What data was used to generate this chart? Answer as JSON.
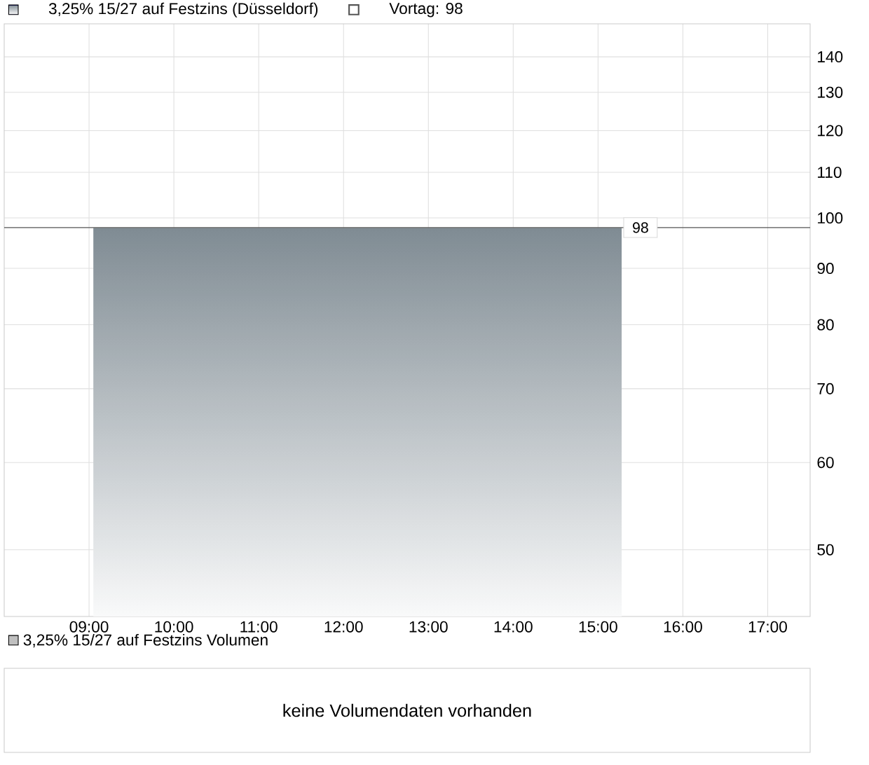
{
  "chart_data": [
    {
      "type": "area",
      "x": [
        9.05,
        15.28
      ],
      "series": [
        {
          "name": "3,25% 15/27 auf Festzins (Düsseldorf)",
          "color": "#7f8b93",
          "values": [
            98,
            98
          ]
        }
      ],
      "xlim": [
        8.0,
        17.5
      ],
      "xticks": [
        {
          "value": 9,
          "label": "09:00"
        },
        {
          "value": 10,
          "label": "10:00"
        },
        {
          "value": 11,
          "label": "11:00"
        },
        {
          "value": 12,
          "label": "12:00"
        },
        {
          "value": 13,
          "label": "13:00"
        },
        {
          "value": 14,
          "label": "14:00"
        },
        {
          "value": 15,
          "label": "15:00"
        },
        {
          "value": 16,
          "label": "16:00"
        },
        {
          "value": 17,
          "label": "17:00"
        }
      ],
      "ylim": [
        43.5,
        150
      ],
      "yticks": [
        50,
        60,
        70,
        80,
        90,
        100,
        110,
        120,
        130,
        140
      ],
      "log": "y",
      "grid": true,
      "legend": "top left",
      "ref_lines": [
        {
          "axis": "y",
          "value": 98,
          "label": "Vortag: 98",
          "color": "#555555"
        }
      ],
      "annotations": [
        {
          "text": "98",
          "x": 15.5,
          "y": 98
        }
      ]
    },
    {
      "type": "other",
      "title": "3,25% 15/27 auf Festzins Volumen",
      "annotations": [
        "keine Volumendaten vorhanden"
      ]
    }
  ]
}
